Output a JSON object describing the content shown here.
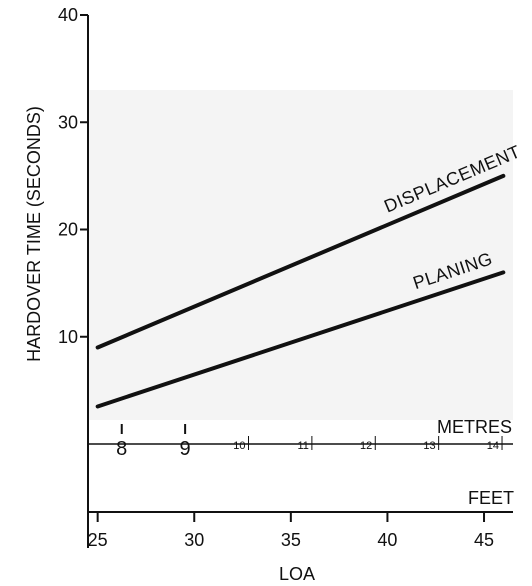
{
  "chart_data": {
    "type": "line",
    "title": "",
    "xlabel": "LOA",
    "ylabel": "HARDOVER TIME (SECONDS)",
    "x_unit_label": "FEET",
    "secondary_x_unit_label": "METRES",
    "xlim": [
      24.5,
      46.5
    ],
    "ylim": [
      0,
      40
    ],
    "x_ticks": [
      "25",
      "30",
      "35",
      "40",
      "45"
    ],
    "y_ticks": [
      "10",
      "20",
      "30",
      "40"
    ],
    "metre_ticks": [
      "8",
      "9",
      "10",
      "11",
      "12",
      "13",
      "14"
    ],
    "grid": false,
    "legend": "none",
    "series": [
      {
        "name": "DISPLACEMENT",
        "x": [
          25,
          46
        ],
        "y": [
          9,
          25
        ]
      },
      {
        "name": "PLANING",
        "x": [
          25,
          46
        ],
        "y": [
          3.5,
          16
        ]
      }
    ]
  }
}
